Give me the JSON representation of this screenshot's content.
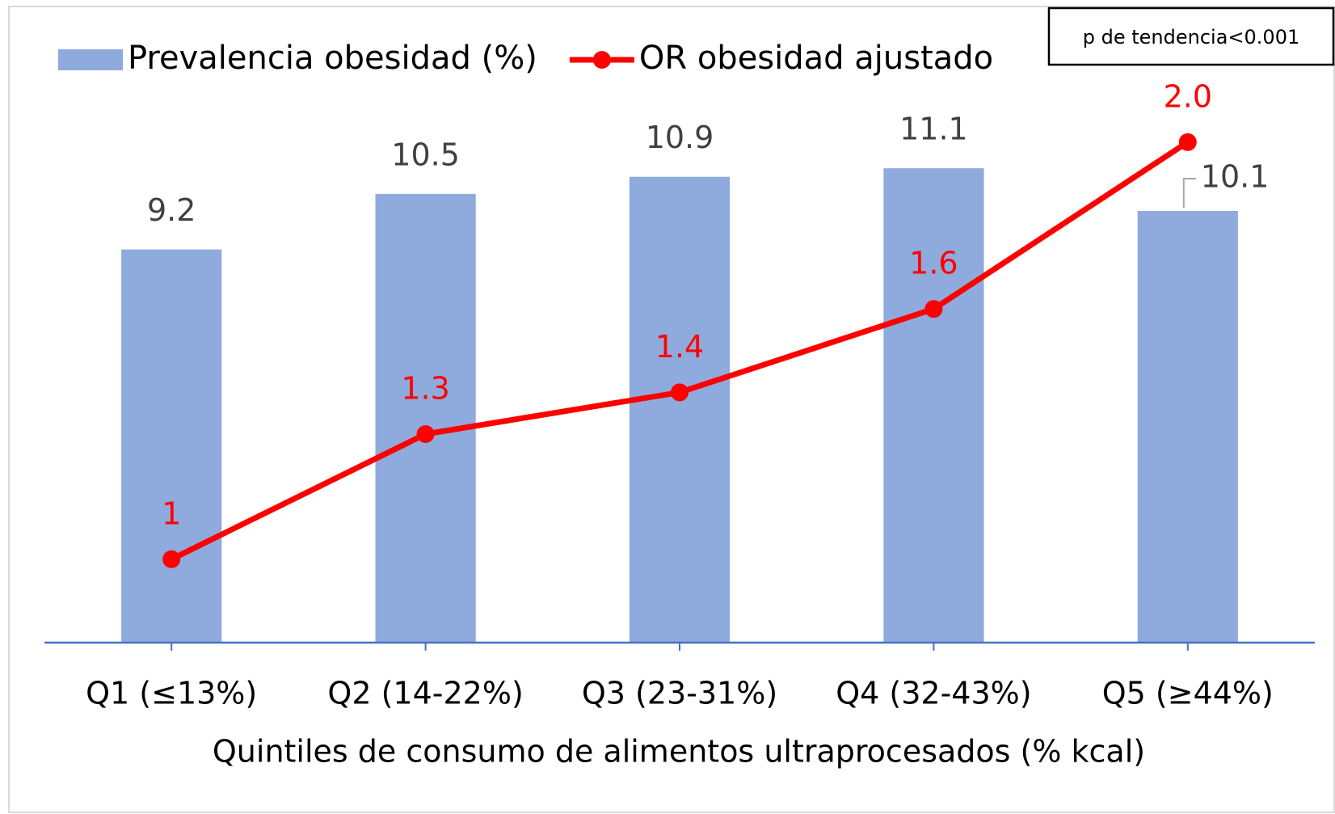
{
  "chart_data": {
    "type": "bar",
    "categories": [
      "Q1 (≤13%)",
      "Q2 (14-22%)",
      "Q3 (23-31%)",
      "Q4 (32-43%)",
      "Q5 (≥44%)"
    ],
    "x_label": "Quintiles de consumo de alimentos ultraprocesados (% kcal)",
    "annotation": "p de tendencia<0.001",
    "series": [
      {
        "name": "Prevalencia obesidad (%)",
        "type": "bar",
        "color": "#8faadc",
        "values": [
          9.2,
          10.5,
          10.9,
          11.1,
          10.1
        ]
      },
      {
        "name": "OR obesidad ajustado",
        "type": "line",
        "axis": "y2",
        "color": "#ff0000",
        "values": [
          1,
          1.3,
          1.4,
          1.6,
          2.0
        ],
        "value_labels": [
          "1",
          "1.3",
          "1.4",
          "1.6",
          "2.0"
        ]
      }
    ],
    "ylim": [
      0,
      12.2
    ],
    "y2lim": [
      0.8,
      2.05
    ],
    "legend": "top"
  }
}
